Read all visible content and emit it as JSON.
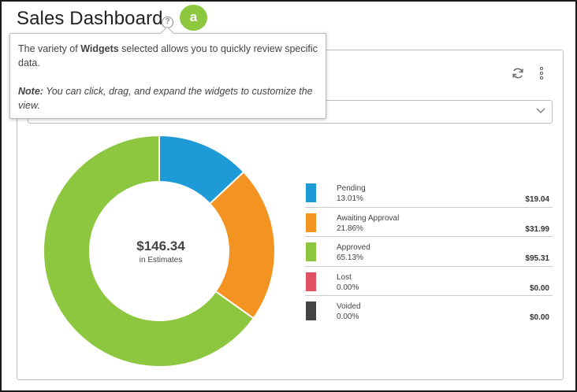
{
  "header": {
    "title": "Sales Dashboard",
    "help_icon": "question-circle-icon",
    "callout_label": "a",
    "callout_color": "#8dc63f"
  },
  "tooltip": {
    "line1_pre": "The variety of ",
    "line1_bold": "Widgets",
    "line1_post": " selected allows you to quickly review specific data.",
    "note_label": "Note:",
    "note_text": " You can click, drag, and expand the widgets to customize the view."
  },
  "widget": {
    "refresh_icon": "refresh-icon",
    "more_icon": "more-vertical-icon",
    "dropdown_icon": "chevron-down-icon"
  },
  "chart_data": {
    "type": "pie",
    "donut": true,
    "center_value": "$146.34",
    "center_label": "in Estimates",
    "categories": [
      "Pending",
      "Awaiting Approval",
      "Approved",
      "Lost",
      "Voided"
    ],
    "percents": [
      "13.01%",
      "21.86%",
      "65.13%",
      "0.00%",
      "0.00%"
    ],
    "values": [
      19.04,
      31.99,
      95.31,
      0.0,
      0.0
    ],
    "amounts": [
      "$19.04",
      "$31.99",
      "$95.31",
      "$0.00",
      "$0.00"
    ],
    "colors": [
      "#1e9ad6",
      "#f39321",
      "#8dc63f",
      "#e05263",
      "#444444"
    ]
  }
}
